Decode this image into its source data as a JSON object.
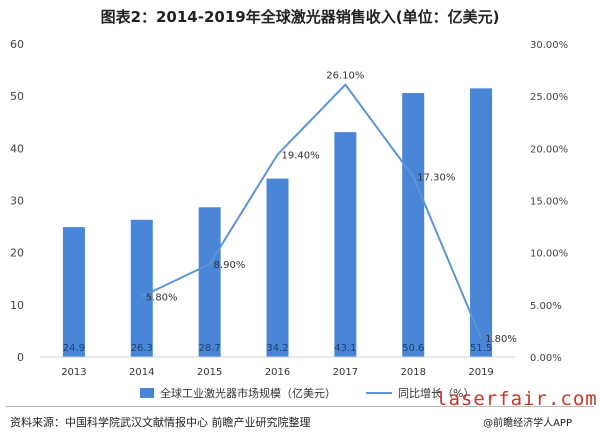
{
  "title": "图表2：2014-2019年全球激光器销售收入(单位：亿美元)",
  "source": "资料来源：中国科学院武汉文献情报中心 前瞻产业研究院整理",
  "credit": "@前瞻经济学人APP",
  "site": "laserfair.com",
  "colors": {
    "bar": "#4A86D8",
    "line": "#5B95D6"
  },
  "chart_data": {
    "type": "bar",
    "categories": [
      "2013",
      "2014",
      "2015",
      "2016",
      "2017",
      "2018",
      "2019"
    ],
    "series": [
      {
        "name": "全球工业激光器市场规模（亿美元）",
        "type": "bar",
        "axis": "left",
        "values": [
          24.9,
          26.3,
          28.7,
          34.2,
          43.1,
          50.6,
          51.5
        ],
        "labels": [
          "24.9",
          "26.3",
          "28.7",
          "34.2",
          "43.1",
          "50.6",
          "51.5"
        ]
      },
      {
        "name": "同比增长（%）",
        "type": "line",
        "axis": "right",
        "values": [
          null,
          5.8,
          8.9,
          19.4,
          26.1,
          17.3,
          1.8
        ],
        "labels": [
          "",
          "5.80%",
          "8.90%",
          "19.40%",
          "26.10%",
          "17.30%",
          "1.80%"
        ]
      }
    ],
    "y_left": {
      "range": [
        0,
        60
      ],
      "ticks": [
        "0",
        "10",
        "20",
        "30",
        "40",
        "50",
        "60"
      ]
    },
    "y_right": {
      "range": [
        0,
        30
      ],
      "ticks": [
        "0.00%",
        "5.00%",
        "10.00%",
        "15.00%",
        "20.00%",
        "25.00%",
        "30.00%"
      ]
    },
    "grid": false,
    "legend_position": "bottom"
  }
}
